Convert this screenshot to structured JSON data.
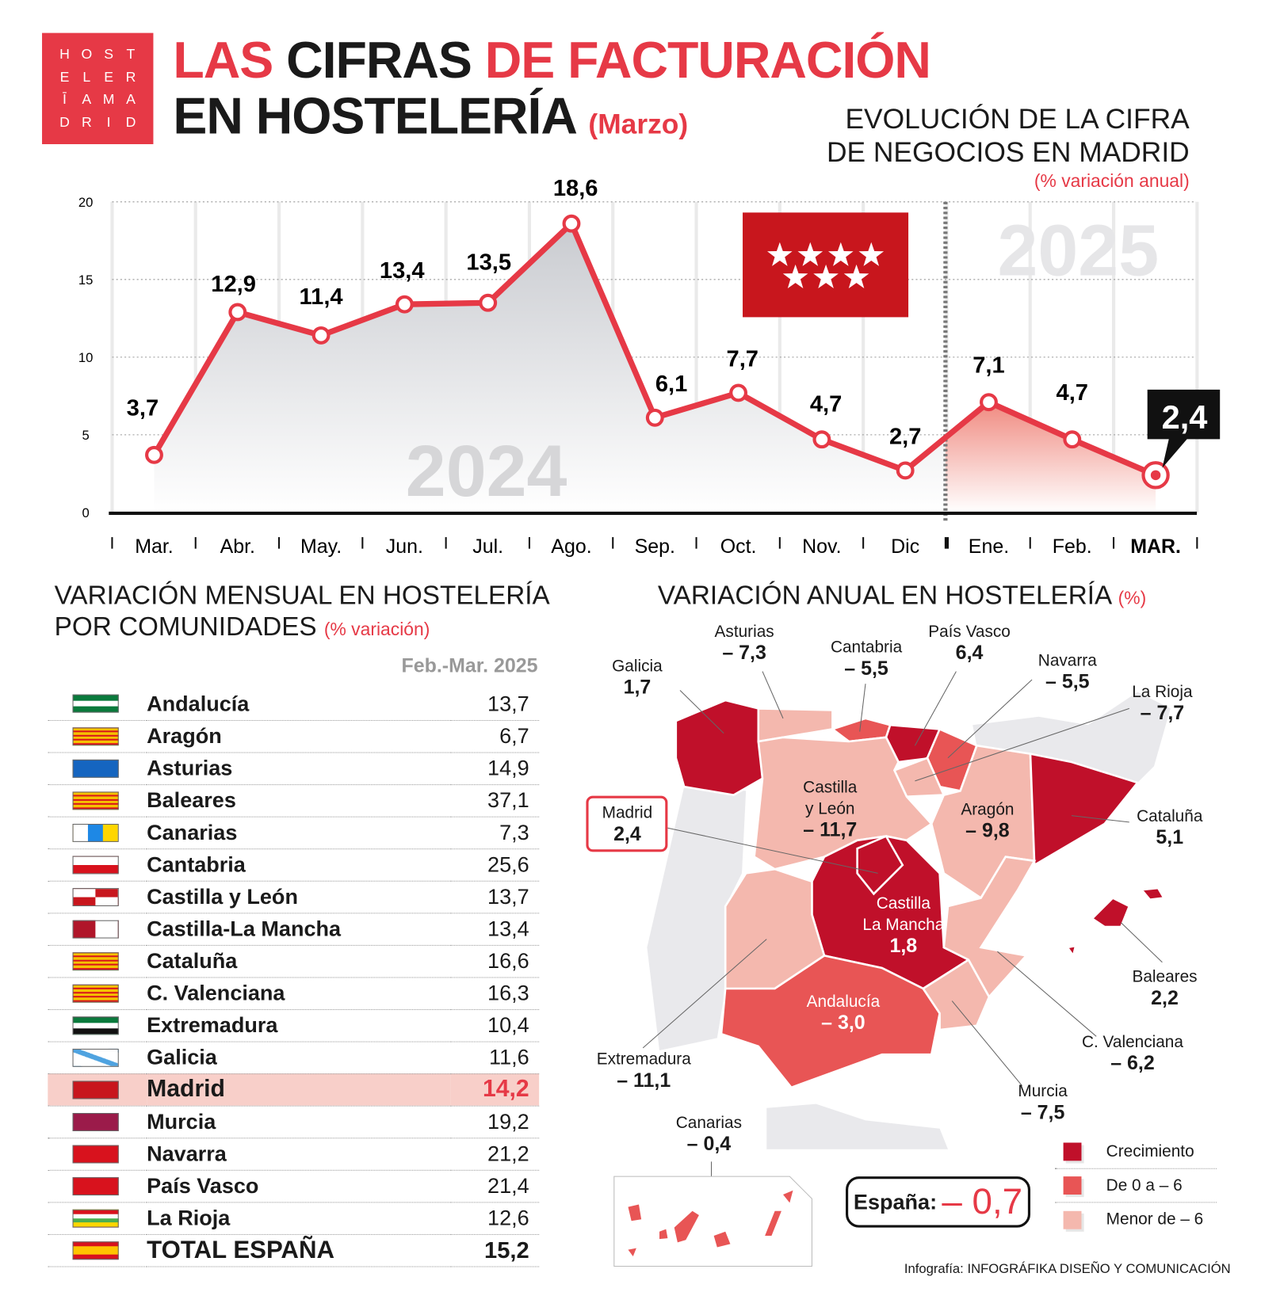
{
  "logo": {
    "letters": [
      "H",
      "O",
      "S",
      "T",
      "E",
      "L",
      "E",
      "R",
      "Ī",
      "A",
      "M",
      "A",
      "D",
      "R",
      "I",
      "D"
    ]
  },
  "header": {
    "title_w1": "LAS",
    "title_w2": "CIFRAS",
    "title_w3": "DE FACTURACIÓN",
    "title_line2": "EN HOSTELERÍA",
    "title_sub": "(Marzo)"
  },
  "chart_title": {
    "line1": "EVOLUCIÓN DE LA CIFRA",
    "line2": "DE NEGOCIOS EN MADRID",
    "sub": "(% variación anual)"
  },
  "chart_data": {
    "type": "line",
    "categories": [
      "Mar.",
      "Abr.",
      "May.",
      "Jun.",
      "Jul.",
      "Ago.",
      "Sep.",
      "Oct.",
      "Nov.",
      "Dic",
      "Ene.",
      "Feb.",
      "MAR."
    ],
    "values": [
      3.7,
      12.9,
      11.4,
      13.4,
      13.5,
      18.6,
      6.1,
      7.7,
      4.7,
      2.7,
      7.1,
      4.7,
      2.4
    ],
    "labels": [
      "3,7",
      "12,9",
      "11,4",
      "13,4",
      "13,5",
      "18,6",
      "6,1",
      "7,7",
      "4,7",
      "2,7",
      "7,1",
      "4,7",
      "2,4"
    ],
    "yticks": [
      "0",
      "5",
      "10",
      "15",
      "20"
    ],
    "ylim": [
      0,
      20
    ],
    "year_labels": [
      "2024",
      "2025"
    ],
    "grid": true,
    "line_color": "#e63946"
  },
  "monthly": {
    "title1": "VARIACIÓN MENSUAL EN HOSTELERÍA",
    "title2": "POR COMUNIDADES",
    "title_sub": "(% variación)",
    "col_header": "Feb.-Mar. 2025",
    "rows": [
      {
        "name": "Andalucía",
        "value": "13,7"
      },
      {
        "name": "Aragón",
        "value": "6,7"
      },
      {
        "name": "Asturias",
        "value": "14,9"
      },
      {
        "name": "Baleares",
        "value": "37,1"
      },
      {
        "name": "Canarias",
        "value": "7,3"
      },
      {
        "name": "Cantabria",
        "value": "25,6"
      },
      {
        "name": "Castilla y León",
        "value": "13,7"
      },
      {
        "name": "Castilla-La Mancha",
        "value": "13,4"
      },
      {
        "name": "Cataluña",
        "value": "16,6"
      },
      {
        "name": "C. Valenciana",
        "value": "16,3"
      },
      {
        "name": "Extremadura",
        "value": "10,4"
      },
      {
        "name": "Galicia",
        "value": "11,6"
      },
      {
        "name": "Madrid",
        "value": "14,2"
      },
      {
        "name": "Murcia",
        "value": "19,2"
      },
      {
        "name": "Navarra",
        "value": "21,2"
      },
      {
        "name": "País Vasco",
        "value": "21,4"
      },
      {
        "name": "La Rioja",
        "value": "12,6"
      },
      {
        "name": "TOTAL ESPAÑA",
        "value": "15,2"
      }
    ]
  },
  "annual": {
    "title": "VARIACIÓN ANUAL EN HOSTELERÍA",
    "title_sub": "(%)",
    "regions": {
      "galicia": {
        "name": "Galicia",
        "value": "1,7"
      },
      "asturias": {
        "name": "Asturias",
        "value": "– 7,3"
      },
      "cantabria": {
        "name": "Cantabria",
        "value": "– 5,5"
      },
      "pvasco": {
        "name": "País Vasco",
        "value": "6,4"
      },
      "navarra": {
        "name": "Navarra",
        "value": "– 5,5"
      },
      "rioja": {
        "name": "La Rioja",
        "value": "– 7,7"
      },
      "cyl": {
        "name1": "Castilla",
        "name2": "y León",
        "value": "– 11,7"
      },
      "aragon": {
        "name": "Aragón",
        "value": "– 9,8"
      },
      "cataluna": {
        "name": "Cataluña",
        "value": "5,1"
      },
      "madrid": {
        "name": "Madrid",
        "value": "2,4"
      },
      "clm": {
        "name1": "Castilla",
        "name2": "La Mancha",
        "value": "1,8"
      },
      "baleares": {
        "name": "Baleares",
        "value": "2,2"
      },
      "valencia": {
        "name": "C. Valenciana",
        "value": "– 6,2"
      },
      "murcia": {
        "name": "Murcia",
        "value": "– 7,5"
      },
      "andalucia": {
        "name": "Andalucía",
        "value": "– 3,0"
      },
      "extremadura": {
        "name": "Extremadura",
        "value": "– 11,1"
      },
      "canarias": {
        "name": "Canarias",
        "value": "– 0,4"
      }
    },
    "spain_label": "España:",
    "spain_value": "– 0,7",
    "legend": [
      {
        "label": "Crecimiento",
        "color": "#c0102a"
      },
      {
        "label": "De 0 a – 6",
        "color": "#e85555"
      },
      {
        "label": "Menor de – 6",
        "color": "#f4b8ae"
      }
    ]
  },
  "credit": {
    "prefix": "Infografía:",
    "name": "INFOGRÁFIKA DISEÑO Y COMUNICACIÓN"
  }
}
